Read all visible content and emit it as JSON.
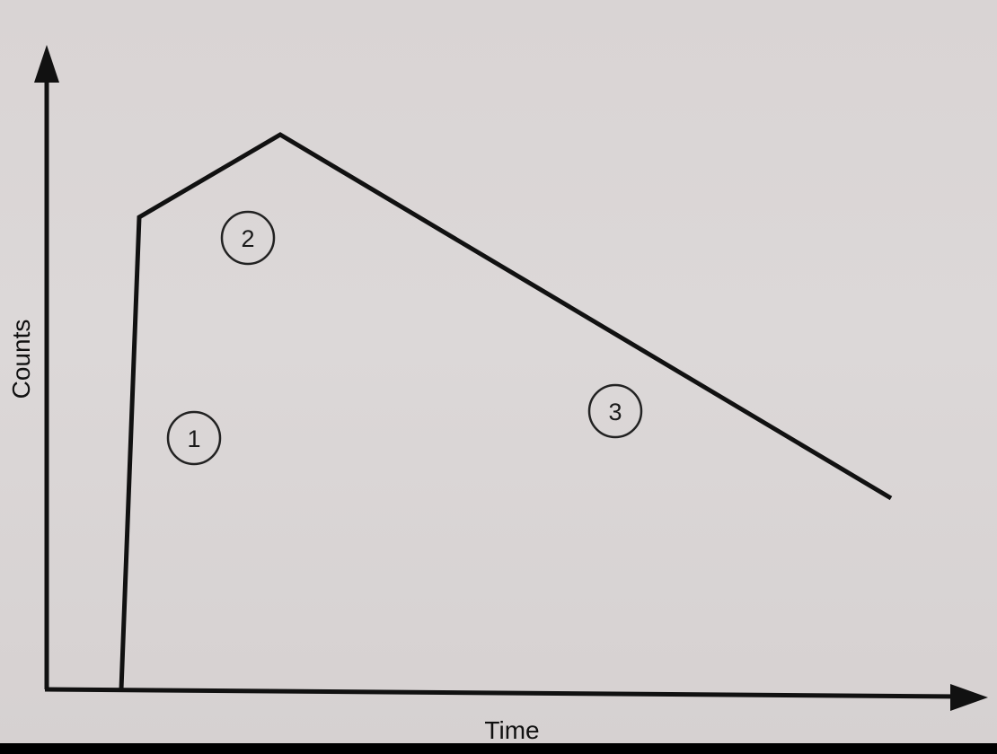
{
  "axes": {
    "y_label": "Counts",
    "x_label": "Time"
  },
  "regions": [
    {
      "number": "1"
    },
    {
      "number": "2"
    },
    {
      "number": "3"
    }
  ],
  "colors": {
    "background": "#dad5d5",
    "ink": "#111111"
  }
}
